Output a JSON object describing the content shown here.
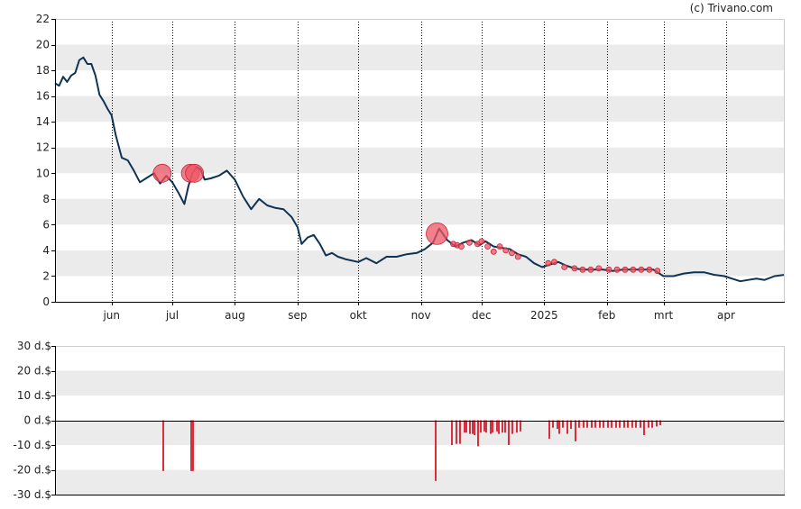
{
  "credit": "(c) Trivano.com",
  "colors": {
    "price_line": "#0f3352",
    "marker_fill": "#ee5563",
    "marker_stroke": "#cc2233",
    "bar": "#d6303f",
    "band": "#ebebeb",
    "axis": "#000000",
    "grid": "#000000"
  },
  "chart_data": [
    {
      "type": "line",
      "title": "",
      "xlabel": "",
      "ylabel": "",
      "ylim": [
        0,
        22
      ],
      "y_ticks": [
        "0",
        "2",
        "4",
        "6",
        "8",
        "10",
        "12",
        "14",
        "16",
        "18",
        "20",
        "22"
      ],
      "x_tick_labels": [
        "jun",
        "jul",
        "aug",
        "sep",
        "okt",
        "nov",
        "dec",
        "2025",
        "feb",
        "mrt",
        "apr"
      ],
      "x_tick_dates": [
        "2024-06-01",
        "2024-07-01",
        "2024-08-01",
        "2024-09-01",
        "2024-10-01",
        "2024-11-01",
        "2024-12-01",
        "2025-01-01",
        "2025-02-01",
        "2025-03-01",
        "2025-04-01"
      ],
      "xlim": [
        "2024-05-04",
        "2025-04-30"
      ],
      "grid": "vertical dotted at month starts; alternating horizontal bands",
      "series": [
        {
          "x": [
            "2024-05-04",
            "2024-05-06",
            "2024-05-08",
            "2024-05-10",
            "2024-05-12",
            "2024-05-14",
            "2024-05-16",
            "2024-05-18",
            "2024-05-20",
            "2024-05-22",
            "2024-05-24",
            "2024-05-26",
            "2024-05-28",
            "2024-05-30",
            "2024-06-01",
            "2024-06-03",
            "2024-06-06",
            "2024-06-09",
            "2024-06-12",
            "2024-06-15",
            "2024-06-18",
            "2024-06-22",
            "2024-06-25",
            "2024-06-28",
            "2024-07-01",
            "2024-07-04",
            "2024-07-07",
            "2024-07-09",
            "2024-07-11",
            "2024-07-13",
            "2024-07-15",
            "2024-07-17",
            "2024-07-20",
            "2024-07-24",
            "2024-07-28",
            "2024-08-01",
            "2024-08-05",
            "2024-08-09",
            "2024-08-13",
            "2024-08-17",
            "2024-08-21",
            "2024-08-25",
            "2024-08-29",
            "2024-09-01",
            "2024-09-03",
            "2024-09-06",
            "2024-09-09",
            "2024-09-12",
            "2024-09-15",
            "2024-09-18",
            "2024-09-21",
            "2024-09-25",
            "2024-10-01",
            "2024-10-05",
            "2024-10-10",
            "2024-10-15",
            "2024-10-20",
            "2024-10-25",
            "2024-10-30",
            "2024-11-03",
            "2024-11-07",
            "2024-11-10",
            "2024-11-14",
            "2024-11-18",
            "2024-11-22",
            "2024-11-26",
            "2024-11-30",
            "2024-12-03",
            "2024-12-07",
            "2024-12-11",
            "2024-12-15",
            "2024-12-19",
            "2024-12-23",
            "2024-12-27",
            "2024-12-31",
            "2025-01-04",
            "2025-01-08",
            "2025-01-12",
            "2025-01-16",
            "2025-01-20",
            "2025-01-25",
            "2025-01-30",
            "2025-02-04",
            "2025-02-09",
            "2025-02-14",
            "2025-02-19",
            "2025-02-24",
            "2025-03-01",
            "2025-03-06",
            "2025-03-11",
            "2025-03-16",
            "2025-03-21",
            "2025-03-26",
            "2025-03-31",
            "2025-04-04",
            "2025-04-08",
            "2025-04-12",
            "2025-04-16",
            "2025-04-20",
            "2025-04-25",
            "2025-04-30"
          ],
          "y": [
            17.0,
            16.8,
            17.5,
            17.1,
            17.6,
            17.8,
            18.8,
            19.0,
            18.5,
            18.5,
            17.6,
            16.1,
            15.6,
            15.0,
            14.5,
            13.0,
            11.2,
            11.0,
            10.2,
            9.3,
            9.6,
            10.0,
            9.2,
            9.8,
            9.3,
            8.5,
            7.6,
            9.0,
            10.0,
            10.5,
            10.3,
            9.5,
            9.6,
            9.8,
            10.2,
            9.5,
            8.2,
            7.2,
            8.0,
            7.5,
            7.3,
            7.2,
            6.6,
            5.8,
            4.5,
            5.0,
            5.2,
            4.5,
            3.6,
            3.8,
            3.5,
            3.3,
            3.1,
            3.4,
            3.0,
            3.5,
            3.5,
            3.7,
            3.8,
            4.1,
            4.6,
            5.7,
            4.8,
            4.3,
            4.6,
            4.8,
            4.4,
            4.7,
            4.3,
            4.2,
            4.1,
            3.7,
            3.5,
            3.0,
            2.7,
            2.9,
            3.1,
            2.8,
            2.6,
            2.5,
            2.5,
            2.5,
            2.4,
            2.5,
            2.5,
            2.5,
            2.5,
            2.0,
            2.0,
            2.2,
            2.3,
            2.3,
            2.1,
            2.0,
            1.8,
            1.6,
            1.7,
            1.8,
            1.7,
            2.0,
            2.1
          ]
        }
      ],
      "markers": [
        {
          "x": "2024-06-26",
          "y": 10.0,
          "size": 2
        },
        {
          "x": "2024-07-10",
          "y": 10.0,
          "size": 2
        },
        {
          "x": "2024-07-12",
          "y": 10.0,
          "size": 2
        },
        {
          "x": "2024-11-09",
          "y": 5.3,
          "size": 3
        },
        {
          "x": "2024-11-17",
          "y": 4.5,
          "size": 1
        },
        {
          "x": "2024-11-19",
          "y": 4.4,
          "size": 1
        },
        {
          "x": "2024-11-21",
          "y": 4.3,
          "size": 1
        },
        {
          "x": "2024-11-25",
          "y": 4.6,
          "size": 1
        },
        {
          "x": "2024-11-29",
          "y": 4.5,
          "size": 1
        },
        {
          "x": "2024-12-01",
          "y": 4.7,
          "size": 1
        },
        {
          "x": "2024-12-04",
          "y": 4.3,
          "size": 1
        },
        {
          "x": "2024-12-07",
          "y": 3.9,
          "size": 1
        },
        {
          "x": "2024-12-10",
          "y": 4.3,
          "size": 1
        },
        {
          "x": "2024-12-13",
          "y": 4.0,
          "size": 1
        },
        {
          "x": "2024-12-16",
          "y": 3.8,
          "size": 1
        },
        {
          "x": "2024-12-19",
          "y": 3.5,
          "size": 1
        },
        {
          "x": "2025-01-03",
          "y": 3.0,
          "size": 1
        },
        {
          "x": "2025-01-06",
          "y": 3.1,
          "size": 1
        },
        {
          "x": "2025-01-11",
          "y": 2.7,
          "size": 1
        },
        {
          "x": "2025-01-16",
          "y": 2.6,
          "size": 1
        },
        {
          "x": "2025-01-20",
          "y": 2.5,
          "size": 1
        },
        {
          "x": "2025-01-24",
          "y": 2.5,
          "size": 1
        },
        {
          "x": "2025-01-28",
          "y": 2.6,
          "size": 1
        },
        {
          "x": "2025-02-02",
          "y": 2.5,
          "size": 1
        },
        {
          "x": "2025-02-06",
          "y": 2.5,
          "size": 1
        },
        {
          "x": "2025-02-10",
          "y": 2.5,
          "size": 1
        },
        {
          "x": "2025-02-14",
          "y": 2.5,
          "size": 1
        },
        {
          "x": "2025-02-18",
          "y": 2.5,
          "size": 1
        },
        {
          "x": "2025-02-22",
          "y": 2.5,
          "size": 1
        },
        {
          "x": "2025-02-26",
          "y": 2.4,
          "size": 1
        }
      ]
    },
    {
      "type": "bar",
      "title": "",
      "xlabel": "",
      "ylabel": "",
      "ylim": [
        -30,
        30
      ],
      "y_ticks": [
        "30 d.$",
        "20 d.$",
        "10 d.$",
        "0 d.$",
        "-10 d.$",
        "-20 d.$",
        "-30 d.$"
      ],
      "xlim": [
        "2024-05-04",
        "2025-04-30"
      ],
      "series": [
        {
          "x": [
            "2024-06-26",
            "2024-07-10",
            "2024-07-11",
            "2024-11-08",
            "2024-11-16",
            "2024-11-18",
            "2024-11-20",
            "2024-11-22",
            "2024-11-23",
            "2024-11-25",
            "2024-11-26",
            "2024-11-27",
            "2024-11-29",
            "2024-11-30",
            "2024-12-02",
            "2024-12-03",
            "2024-12-05",
            "2024-12-06",
            "2024-12-08",
            "2024-12-09",
            "2024-12-11",
            "2024-12-12",
            "2024-12-14",
            "2024-12-16",
            "2024-12-18",
            "2024-12-20",
            "2025-01-03",
            "2025-01-05",
            "2025-01-07",
            "2025-01-08",
            "2025-01-10",
            "2025-01-12",
            "2025-01-14",
            "2025-01-16",
            "2025-01-18",
            "2025-01-20",
            "2025-01-22",
            "2025-01-24",
            "2025-01-26",
            "2025-01-28",
            "2025-01-30",
            "2025-02-01",
            "2025-02-03",
            "2025-02-05",
            "2025-02-07",
            "2025-02-09",
            "2025-02-11",
            "2025-02-13",
            "2025-02-15",
            "2025-02-17",
            "2025-02-19",
            "2025-02-21",
            "2025-02-23",
            "2025-02-25",
            "2025-02-27"
          ],
          "values": [
            -20.5,
            -20.5,
            -20.5,
            -24.5,
            -10.0,
            -9.5,
            -9.5,
            -5.0,
            -5.0,
            -5.5,
            -5.5,
            -6.0,
            -10.5,
            -5.0,
            -4.5,
            -5.0,
            -5.5,
            -5.0,
            -4.5,
            -5.5,
            -5.0,
            -5.0,
            -10.0,
            -5.5,
            -5.0,
            -4.5,
            -7.5,
            -3.0,
            -3.5,
            -5.5,
            -3.0,
            -5.5,
            -3.5,
            -8.5,
            -3.0,
            -3.0,
            -3.0,
            -3.0,
            -3.0,
            -3.0,
            -3.0,
            -3.0,
            -3.0,
            -3.0,
            -3.0,
            -3.0,
            -3.0,
            -3.0,
            -3.0,
            -3.0,
            -6.0,
            -3.0,
            -3.0,
            -2.5,
            -2.0
          ]
        }
      ]
    }
  ]
}
